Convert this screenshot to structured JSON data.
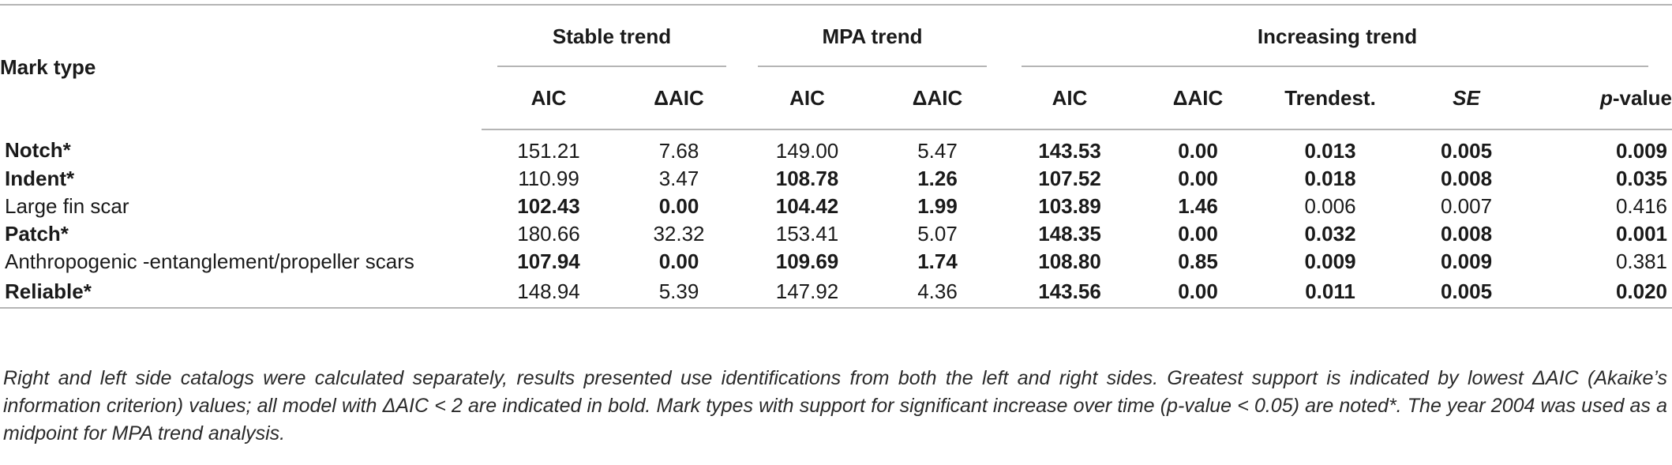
{
  "table": {
    "headers": {
      "mark_type": "Mark type",
      "groups": {
        "stable": "Stable trend",
        "mpa": "MPA trend",
        "increasing": "Increasing trend"
      },
      "sub": {
        "aic": "AIC",
        "daic": "ΔAIC",
        "trendest": "Trendest.",
        "se": "SE",
        "p_prefix": "p",
        "p_suffix": "-value"
      }
    },
    "rows": [
      {
        "mark": "Notch*",
        "stable_aic": "151.21",
        "stable_daic": "7.68",
        "mpa_aic": "149.00",
        "mpa_daic": "5.47",
        "inc_aic": "143.53",
        "inc_daic": "0.00",
        "trendest": "0.013",
        "se": "0.005",
        "p": "0.009"
      },
      {
        "mark": "Indent*",
        "stable_aic": "110.99",
        "stable_daic": "3.47",
        "mpa_aic": "108.78",
        "mpa_daic": "1.26",
        "inc_aic": "107.52",
        "inc_daic": "0.00",
        "trendest": "0.018",
        "se": "0.008",
        "p": "0.035"
      },
      {
        "mark": "Large fin scar",
        "stable_aic": "102.43",
        "stable_daic": "0.00",
        "mpa_aic": "104.42",
        "mpa_daic": "1.99",
        "inc_aic": "103.89",
        "inc_daic": "1.46",
        "trendest": "0.006",
        "se": "0.007",
        "p": "0.416"
      },
      {
        "mark": "Patch*",
        "stable_aic": "180.66",
        "stable_daic": "32.32",
        "mpa_aic": "153.41",
        "mpa_daic": "5.07",
        "inc_aic": "148.35",
        "inc_daic": "0.00",
        "trendest": "0.032",
        "se": "0.008",
        "p": "0.001"
      },
      {
        "mark": "Anthropogenic -entanglement/propeller scars",
        "stable_aic": "107.94",
        "stable_daic": "0.00",
        "mpa_aic": "109.69",
        "mpa_daic": "1.74",
        "inc_aic": "108.80",
        "inc_daic": "0.85",
        "trendest": "0.009",
        "se": "0.009",
        "p": "0.381"
      },
      {
        "mark": "Reliable*",
        "stable_aic": "148.94",
        "stable_daic": "5.39",
        "mpa_aic": "147.92",
        "mpa_daic": "4.36",
        "inc_aic": "143.56",
        "inc_daic": "0.00",
        "trendest": "0.011",
        "se": "0.005",
        "p": "0.020"
      }
    ]
  },
  "footnote": "Right and left side catalogs were calculated separately, results presented use identifications from both the left and right sides. Greatest support is indicated by lowest ΔAIC (Akaike’s information criterion) values; all model with ΔAIC < 2 are indicated in bold. Mark types with support for significant increase over time (p-value < 0.05) are noted*. The year 2004 was used as a midpoint for MPA trend analysis."
}
